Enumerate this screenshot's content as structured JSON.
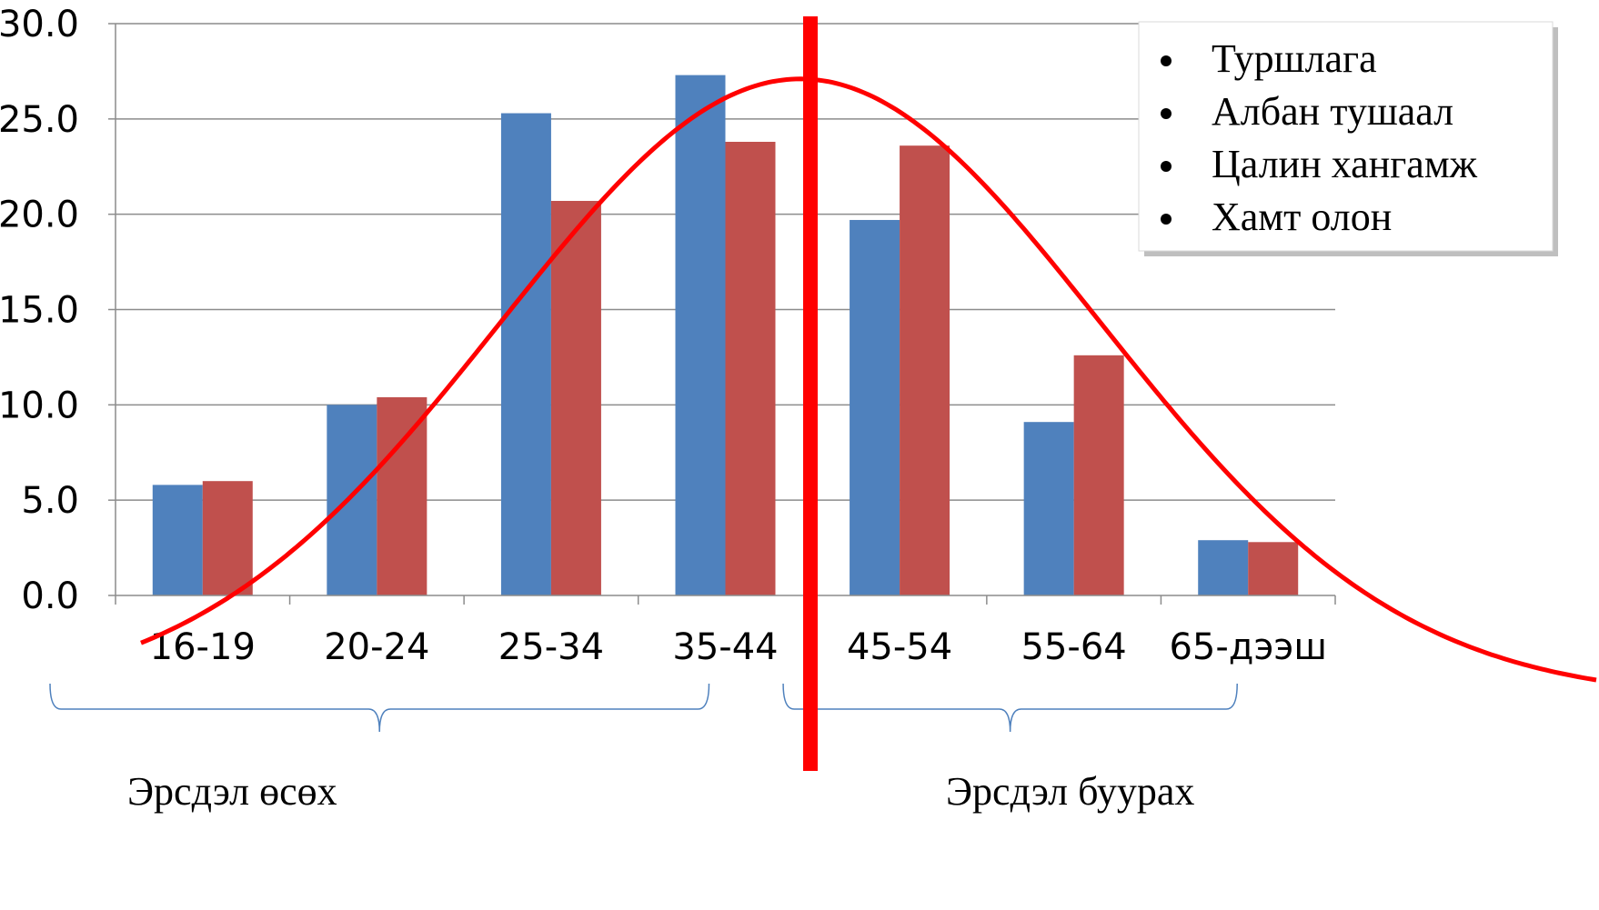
{
  "chart_data": {
    "type": "bar",
    "categories": [
      "16-19",
      "20-24",
      "25-34",
      "35-44",
      "45-54",
      "55-64",
      "65-дээш"
    ],
    "series": [
      {
        "values": [
          5.8,
          10.0,
          25.3,
          27.3,
          19.7,
          9.1,
          2.9
        ]
      },
      {
        "values": [
          6.0,
          10.4,
          20.7,
          23.8,
          23.6,
          12.6,
          2.8
        ]
      }
    ],
    "ylim": [
      0,
      30
    ],
    "yticks": [
      "0.0",
      "5.0",
      "10.0",
      "15.0",
      "20.0",
      "25.0",
      "30.0"
    ],
    "grid": true,
    "colors": {
      "series0": "#4F81BD",
      "series1": "#C0504D",
      "curve": "#FF0000"
    },
    "curve": {
      "peak": 27.1,
      "peak_category": "35-44"
    },
    "legend_items": [
      "Туршлага",
      "Албан тушаал",
      "Цалин хангамж",
      "Хамт олон"
    ],
    "legend_placement": "top-right",
    "groups": [
      {
        "label": "Эрсдэл өсөх",
        "from": "16-19",
        "to": "35-44"
      },
      {
        "label": "Эрсдэл буурах",
        "from": "45-54",
        "to": "65-дээш"
      }
    ]
  }
}
